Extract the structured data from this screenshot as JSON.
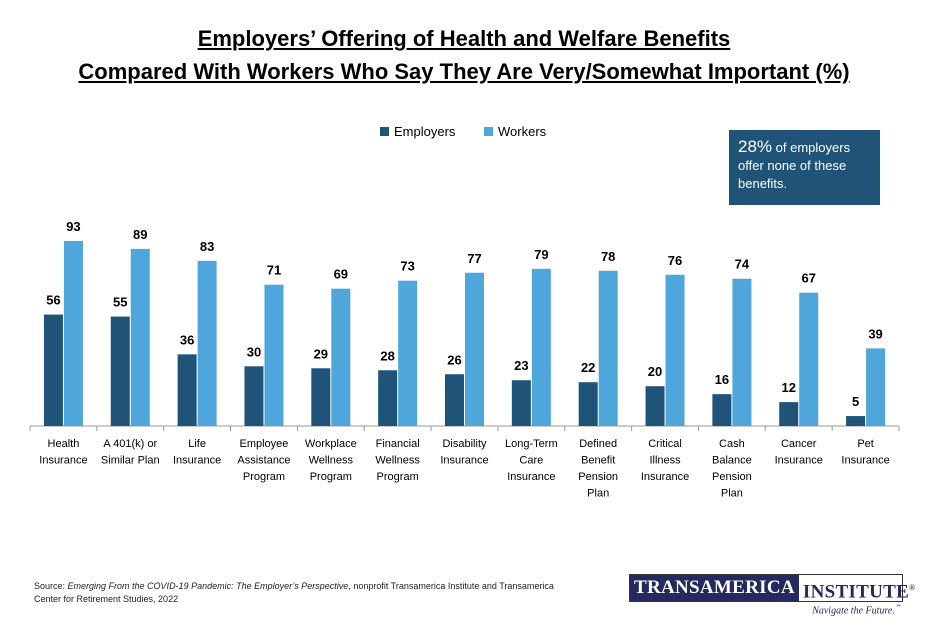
{
  "title_line1": "Employers’ Offering of Health and Welfare Benefits",
  "title_line2": "Compared With Workers Who Say They Are Very/Somewhat Important (%)",
  "callout": {
    "big": "28%",
    "text": " of employers offer none of these benefits."
  },
  "source": {
    "prefix": "Source: ",
    "italic": "Emerging From the COVID-19 Pandemic: The Employer’s Perspective",
    "suffix": ", nonprofit Transamerica Institute and Transamerica Center for Retirement Studies, 2022"
  },
  "logo": {
    "part1": "TRANSAMERICA",
    "part2": "INSTITUTE",
    "reg": "®",
    "tagline": "Navigate the Future.",
    "tm": "℠"
  },
  "chart_data": {
    "type": "bar",
    "title": "Employers’ Offering of Health and Welfare Benefits Compared With Workers Who Say They Are Very/Somewhat Important (%)",
    "legend_position": "top",
    "ylim": [
      0,
      100
    ],
    "grid": false,
    "categories": [
      [
        "Health",
        "Insurance"
      ],
      [
        "A 401(k) or",
        "Similar Plan"
      ],
      [
        "Life",
        "Insurance"
      ],
      [
        "Employee",
        "Assistance",
        "Program"
      ],
      [
        "Workplace",
        "Wellness",
        "Program"
      ],
      [
        "Financial",
        "Wellness",
        "Program"
      ],
      [
        "Disability",
        "Insurance"
      ],
      [
        "Long-Term",
        "Care",
        "Insurance"
      ],
      [
        "Defined",
        "Benefit",
        "Pension",
        "Plan"
      ],
      [
        "Critical",
        "Illness",
        "Insurance"
      ],
      [
        "Cash",
        "Balance",
        "Pension",
        "Plan"
      ],
      [
        "Cancer",
        "Insurance"
      ],
      [
        "Pet",
        "Insurance"
      ]
    ],
    "series": [
      {
        "name": "Employers",
        "color": "#1f5378",
        "values": [
          56,
          55,
          36,
          30,
          29,
          28,
          26,
          23,
          22,
          20,
          16,
          12,
          5
        ]
      },
      {
        "name": "Workers",
        "color": "#4ea6da",
        "values": [
          93,
          89,
          83,
          71,
          69,
          73,
          77,
          79,
          78,
          76,
          74,
          67,
          39
        ]
      }
    ]
  }
}
